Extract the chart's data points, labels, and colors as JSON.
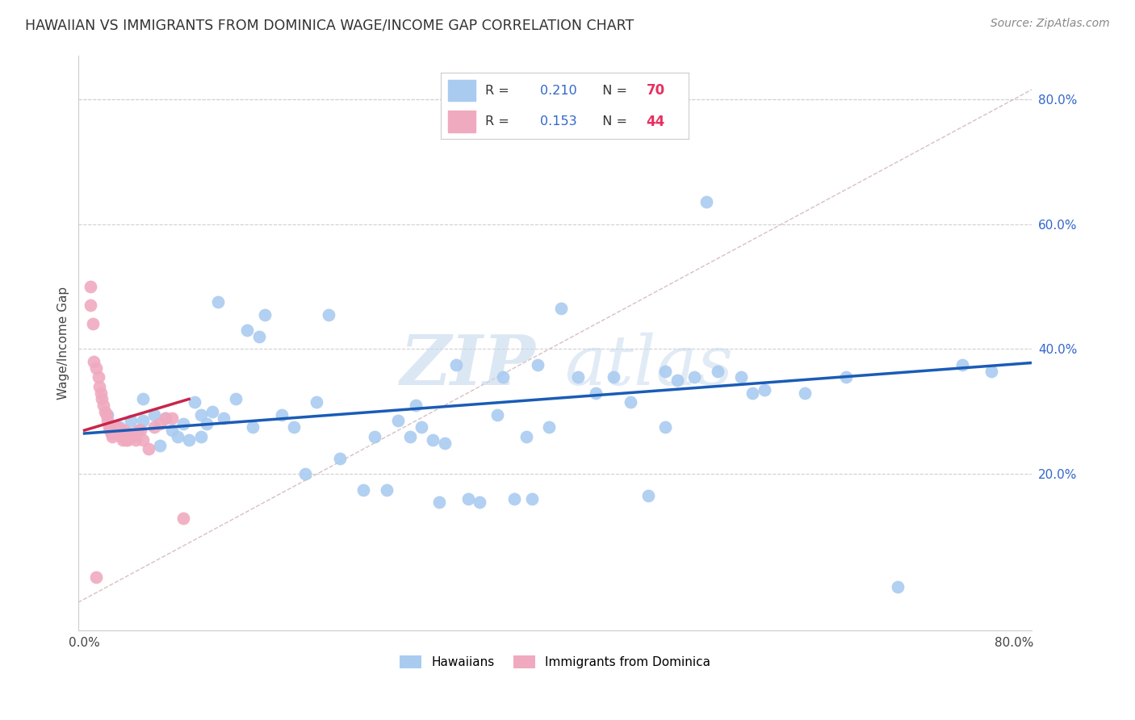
{
  "title": "HAWAIIAN VS IMMIGRANTS FROM DOMINICA WAGE/INCOME GAP CORRELATION CHART",
  "source": "Source: ZipAtlas.com",
  "ylabel": "Wage/Income Gap",
  "xlim": [
    -0.005,
    0.815
  ],
  "ylim": [
    -0.05,
    0.87
  ],
  "background_color": "#ffffff",
  "hawaiians_color": "#aacbf0",
  "dominica_color": "#f0aac0",
  "hawaiians_trend_color": "#1a5cb5",
  "dominica_trend_color": "#c8254a",
  "grid_color": "#d0d0d0",
  "diag_color": "#d8c0c0",
  "R_hawaiians": 0.21,
  "N_hawaiians": 70,
  "R_dominica": 0.153,
  "N_dominica": 44,
  "watermark": "ZIPatlas",
  "hawaiians_x": [
    0.02,
    0.03,
    0.04,
    0.05,
    0.05,
    0.06,
    0.065,
    0.07,
    0.075,
    0.08,
    0.085,
    0.09,
    0.095,
    0.1,
    0.1,
    0.105,
    0.11,
    0.115,
    0.12,
    0.13,
    0.14,
    0.145,
    0.15,
    0.155,
    0.17,
    0.18,
    0.19,
    0.2,
    0.21,
    0.22,
    0.24,
    0.25,
    0.26,
    0.27,
    0.28,
    0.285,
    0.29,
    0.3,
    0.305,
    0.31,
    0.32,
    0.33,
    0.34,
    0.355,
    0.36,
    0.37,
    0.38,
    0.385,
    0.39,
    0.4,
    0.41,
    0.425,
    0.44,
    0.455,
    0.47,
    0.485,
    0.5,
    0.51,
    0.525,
    0.535,
    0.545,
    0.565,
    0.575,
    0.585,
    0.5,
    0.62,
    0.655,
    0.7,
    0.755,
    0.78
  ],
  "hawaiians_y": [
    0.295,
    0.275,
    0.285,
    0.32,
    0.285,
    0.295,
    0.245,
    0.29,
    0.27,
    0.26,
    0.28,
    0.255,
    0.315,
    0.295,
    0.26,
    0.28,
    0.3,
    0.475,
    0.29,
    0.32,
    0.43,
    0.275,
    0.42,
    0.455,
    0.295,
    0.275,
    0.2,
    0.315,
    0.455,
    0.225,
    0.175,
    0.26,
    0.175,
    0.285,
    0.26,
    0.31,
    0.275,
    0.255,
    0.155,
    0.25,
    0.375,
    0.16,
    0.155,
    0.295,
    0.355,
    0.16,
    0.26,
    0.16,
    0.375,
    0.275,
    0.465,
    0.355,
    0.33,
    0.355,
    0.315,
    0.165,
    0.275,
    0.35,
    0.355,
    0.635,
    0.365,
    0.355,
    0.33,
    0.335,
    0.365,
    0.33,
    0.355,
    0.02,
    0.375,
    0.365
  ],
  "dominica_x": [
    0.005,
    0.005,
    0.007,
    0.008,
    0.01,
    0.012,
    0.013,
    0.014,
    0.015,
    0.016,
    0.018,
    0.019,
    0.02,
    0.021,
    0.022,
    0.023,
    0.024,
    0.025,
    0.026,
    0.027,
    0.028,
    0.029,
    0.03,
    0.031,
    0.032,
    0.033,
    0.034,
    0.035,
    0.036,
    0.037,
    0.038,
    0.04,
    0.042,
    0.044,
    0.046,
    0.048,
    0.05,
    0.055,
    0.06,
    0.065,
    0.07,
    0.075,
    0.085,
    0.01
  ],
  "dominica_y": [
    0.5,
    0.47,
    0.44,
    0.38,
    0.37,
    0.355,
    0.34,
    0.33,
    0.32,
    0.31,
    0.3,
    0.295,
    0.285,
    0.275,
    0.27,
    0.265,
    0.26,
    0.275,
    0.27,
    0.265,
    0.275,
    0.265,
    0.27,
    0.265,
    0.26,
    0.255,
    0.27,
    0.265,
    0.255,
    0.255,
    0.265,
    0.265,
    0.26,
    0.255,
    0.27,
    0.27,
    0.255,
    0.24,
    0.275,
    0.28,
    0.29,
    0.29,
    0.13,
    0.035
  ],
  "trend_h_x0": 0.0,
  "trend_h_x1": 0.815,
  "trend_h_y0": 0.265,
  "trend_h_y1": 0.378,
  "trend_d_x0": 0.0,
  "trend_d_x1": 0.09,
  "trend_d_y0": 0.27,
  "trend_d_y1": 0.32
}
